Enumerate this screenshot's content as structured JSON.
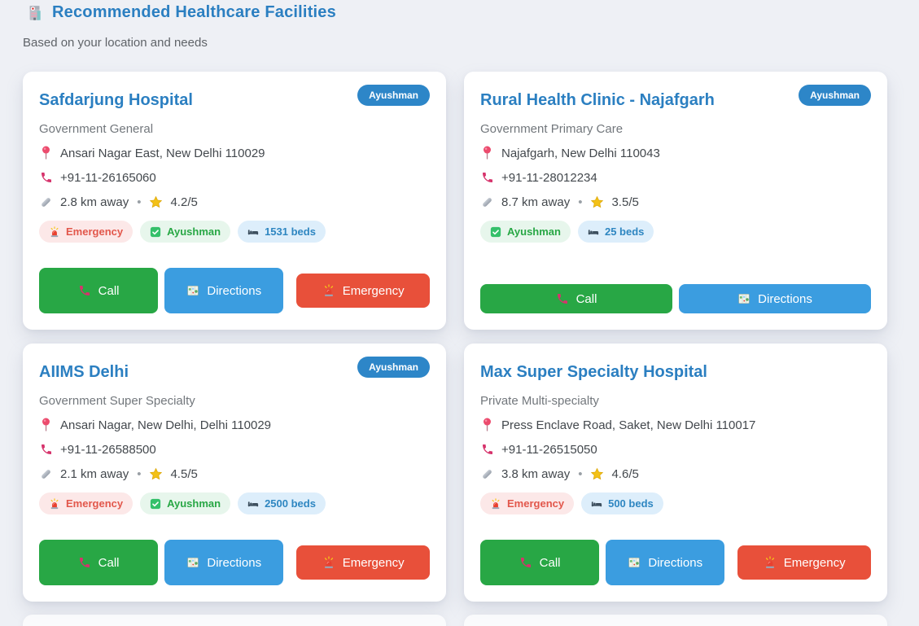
{
  "header": {
    "icon": "hospital-icon",
    "title": "Recommended Healthcare Facilities",
    "subtitle": "Based on your location and needs"
  },
  "labels": {
    "separator": "•",
    "ayushman_pill": "Ayushman"
  },
  "actions": {
    "call": "Call",
    "directions": "Directions",
    "emergency": "Emergency"
  },
  "icons": {
    "header": "hospital-icon",
    "address": "location-pin-icon",
    "phone": "phone-icon",
    "distance": "ruler-icon",
    "rating": "star-icon",
    "emergency_tag": "siren-icon",
    "ayushman_tag": "check-icon",
    "beds_tag": "bed-icon",
    "call_button": "phone-icon",
    "directions_button": "map-icon",
    "emergency_button": "siren-icon"
  },
  "colors": {
    "page_background": "#eef0f5",
    "title_blue": "#2b7fc1",
    "call_green": "#28a745",
    "directions_blue": "#3b9de0",
    "emergency_red": "#e8503a",
    "ayushman_pill_blue": "#2d86c8",
    "tag_emergency_text": "#e2574b",
    "tag_ayushman_text": "#28a745",
    "tag_beds_text": "#2e86c1",
    "star_yellow": "#f3c117"
  },
  "facilities": [
    {
      "name": "Safdarjung Hospital",
      "type": "Government General",
      "address": "Ansari Nagar East, New Delhi 110029",
      "phone": "+91-11-26165060",
      "distance": "2.8 km away",
      "rating": "4.2/5",
      "ayushman_pill": true,
      "tags": [
        {
          "kind": "emergency",
          "label": "Emergency"
        },
        {
          "kind": "ayushman",
          "label": "Ayushman"
        },
        {
          "kind": "beds",
          "label": "1531 beds"
        }
      ],
      "buttons": [
        "call",
        "directions",
        "emergency"
      ]
    },
    {
      "name": "Rural Health Clinic - Najafgarh",
      "type": "Government Primary Care",
      "address": "Najafgarh, New Delhi 110043",
      "phone": "+91-11-28012234",
      "distance": "8.7 km away",
      "rating": "3.5/5",
      "ayushman_pill": true,
      "tags": [
        {
          "kind": "ayushman",
          "label": "Ayushman"
        },
        {
          "kind": "beds",
          "label": "25 beds"
        }
      ],
      "buttons": [
        "call",
        "directions"
      ]
    },
    {
      "name": "AIIMS Delhi",
      "type": "Government Super Specialty",
      "address": "Ansari Nagar, New Delhi, Delhi 110029",
      "phone": "+91-11-26588500",
      "distance": "2.1 km away",
      "rating": "4.5/5",
      "ayushman_pill": true,
      "tags": [
        {
          "kind": "emergency",
          "label": "Emergency"
        },
        {
          "kind": "ayushman",
          "label": "Ayushman"
        },
        {
          "kind": "beds",
          "label": "2500 beds"
        }
      ],
      "buttons": [
        "call",
        "directions",
        "emergency"
      ]
    },
    {
      "name": "Max Super Specialty Hospital",
      "type": "Private Multi-specialty",
      "address": "Press Enclave Road, Saket, New Delhi 110017",
      "phone": "+91-11-26515050",
      "distance": "3.8 km away",
      "rating": "4.6/5",
      "ayushman_pill": false,
      "tags": [
        {
          "kind": "emergency",
          "label": "Emergency"
        },
        {
          "kind": "beds",
          "label": "500 beds"
        }
      ],
      "buttons": [
        "call",
        "directions",
        "emergency"
      ]
    }
  ]
}
